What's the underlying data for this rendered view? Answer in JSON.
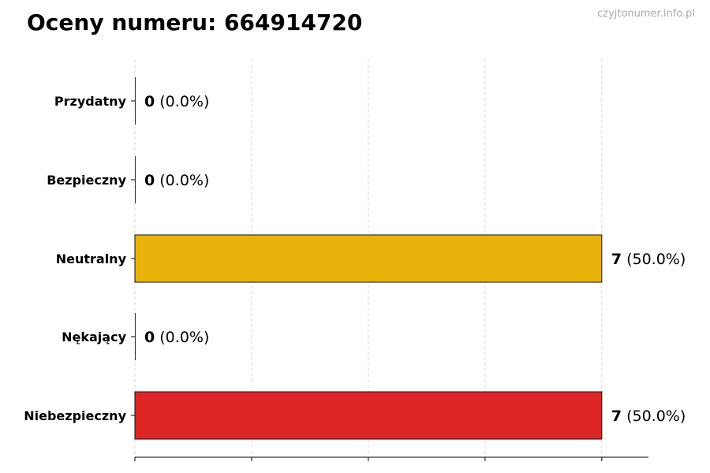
{
  "title": "Oceny numeru: 664914720",
  "watermark": "czyjtonumer.info.pl",
  "chart_data": {
    "type": "bar",
    "orientation": "horizontal",
    "title": "Oceny numeru: 664914720",
    "categories": [
      "Przydatny",
      "Bezpieczny",
      "Neutralny",
      "Nękający",
      "Niebezpieczny"
    ],
    "values": [
      0,
      0,
      7,
      0,
      7
    ],
    "labels": [
      "(0.0%)",
      "(0.0%)",
      "(50.0%)",
      "(0.0%)",
      "(50.0%)"
    ],
    "colors": [
      "#22a447",
      "#22a447",
      "#e8b20a",
      "#e07020",
      "#dc2626"
    ],
    "xlim": [
      0,
      7.7
    ],
    "xticks": [
      0,
      1.75,
      3.5,
      5.25,
      7
    ],
    "xtick_labels_shown": false,
    "grid": "x dashed",
    "xlabel": "",
    "ylabel": ""
  }
}
